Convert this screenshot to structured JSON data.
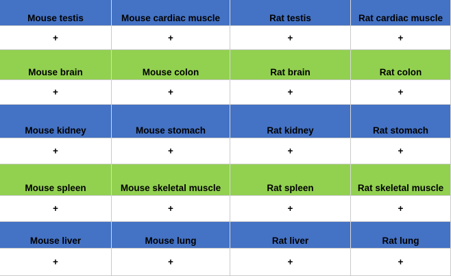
{
  "table": {
    "groups": [
      {
        "color": "#4472c4",
        "labels": [
          "Mouse testis",
          "Mouse cardiac muscle",
          "Rat testis",
          "Rat cardiac muscle"
        ],
        "marks": [
          "+",
          "+",
          "+",
          "+"
        ]
      },
      {
        "color": "#92d050",
        "labels": [
          "Mouse brain",
          "Mouse colon",
          "Rat brain",
          "Rat colon"
        ],
        "marks": [
          "+",
          "+",
          "+",
          "+"
        ]
      },
      {
        "color": "#4472c4",
        "labels": [
          "Mouse kidney",
          "Mouse stomach",
          "Rat kidney",
          "Rat stomach"
        ],
        "marks": [
          "+",
          "+",
          "+",
          "+"
        ]
      },
      {
        "color": "#92d050",
        "labels": [
          "Mouse spleen",
          "Mouse skeletal muscle",
          "Rat spleen",
          "Rat skeletal muscle"
        ],
        "marks": [
          "+",
          "+",
          "+",
          "+"
        ]
      },
      {
        "color": "#4472c4",
        "labels": [
          "Mouse liver",
          "Mouse lung",
          "Rat liver",
          "Rat lung"
        ],
        "marks": [
          "+",
          "+",
          "+",
          "+"
        ]
      }
    ]
  }
}
